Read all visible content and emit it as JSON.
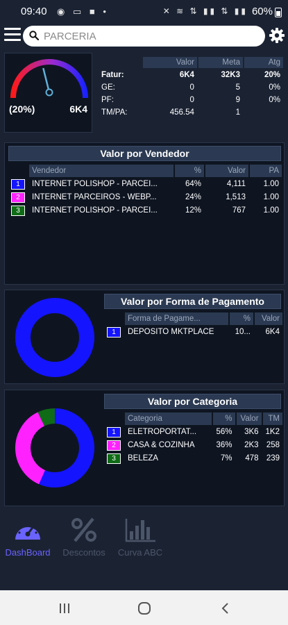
{
  "status_bar": {
    "time": "09:40",
    "left_icons": "◉ ▭ ■ •",
    "right_icons": "✕ ≋ ⇅ ▮▮ ⇅ ▮▮",
    "battery": "60%"
  },
  "search": {
    "placeholder": "PARCERIA",
    "value": ""
  },
  "gauge": {
    "percent_label": "(20%)",
    "value_label": "6K4",
    "fraction": 0.2
  },
  "stats": {
    "headers": [
      "Valor",
      "Meta",
      "Atg"
    ],
    "rows": [
      {
        "label": "Fatur:",
        "valor": "6K4",
        "meta": "32K3",
        "atg": "20%"
      },
      {
        "label": "GE:",
        "valor": "0",
        "meta": "5",
        "atg": "0%"
      },
      {
        "label": "PF:",
        "valor": "0",
        "meta": "9",
        "atg": "0%"
      },
      {
        "label": "TM/PA:",
        "valor": "456.54",
        "meta": "1",
        "atg": ""
      }
    ]
  },
  "vendedor": {
    "title": "Valor por Vendedor",
    "headers": [
      "Vendedor",
      "%",
      "Valor",
      "PA"
    ],
    "rows": [
      {
        "rank": "1",
        "color": "#1414ff",
        "name": "INTERNET POLISHOP - PARCEI...",
        "pct": "64%",
        "valor": "4,111",
        "pa": "1.00"
      },
      {
        "rank": "2",
        "color": "#ff22ff",
        "name": "INTERNET PARCEIROS - WEBP...",
        "pct": "24%",
        "valor": "1,513",
        "pa": "1.00"
      },
      {
        "rank": "3",
        "color": "#0f6b16",
        "name": "INTERNET POLISHOP - PARCEI...",
        "pct": "12%",
        "valor": "767",
        "pa": "1.00"
      }
    ]
  },
  "pagamento": {
    "title": "Valor por Forma de Pagamento",
    "headers": [
      "Forma de Pagame...",
      "%",
      "Valor"
    ],
    "rows": [
      {
        "rank": "1",
        "color": "#1414ff",
        "name": "DEPOSITO MKTPLACE",
        "pct": "10...",
        "valor": "6K4"
      }
    ],
    "chart_data": {
      "type": "pie",
      "categories": [
        "DEPOSITO MKTPLACE"
      ],
      "values": [
        100
      ],
      "colors": [
        "#1414ff"
      ]
    }
  },
  "categoria": {
    "title": "Valor por Categoria",
    "headers": [
      "Categoria",
      "%",
      "Valor",
      "TM"
    ],
    "rows": [
      {
        "rank": "1",
        "color": "#1414ff",
        "name": "ELETROPORTAT...",
        "pct": "56%",
        "valor": "3K6",
        "tm": "1K2"
      },
      {
        "rank": "2",
        "color": "#ff22ff",
        "name": "CASA & COZINHA",
        "pct": "36%",
        "valor": "2K3",
        "tm": "258"
      },
      {
        "rank": "3",
        "color": "#0f6b16",
        "name": "BELEZA",
        "pct": "7%",
        "valor": "478",
        "tm": "239"
      }
    ],
    "chart_data": {
      "type": "pie",
      "categories": [
        "ELETROPORTAT...",
        "CASA & COZINHA",
        "BELEZA"
      ],
      "values": [
        56,
        36,
        7
      ],
      "colors": [
        "#1414ff",
        "#ff22ff",
        "#0f6b16"
      ]
    }
  },
  "bottom_nav": [
    {
      "label": "DashBoard",
      "icon": "dashboard-icon",
      "active": true
    },
    {
      "label": "Descontos",
      "icon": "percent-icon",
      "active": false
    },
    {
      "label": "Curva ABC",
      "icon": "bar-chart-icon",
      "active": false
    }
  ],
  "colors": {
    "accent": "#6b63ff",
    "panel": "#0e1521",
    "header_cell": "#2b3a52"
  }
}
